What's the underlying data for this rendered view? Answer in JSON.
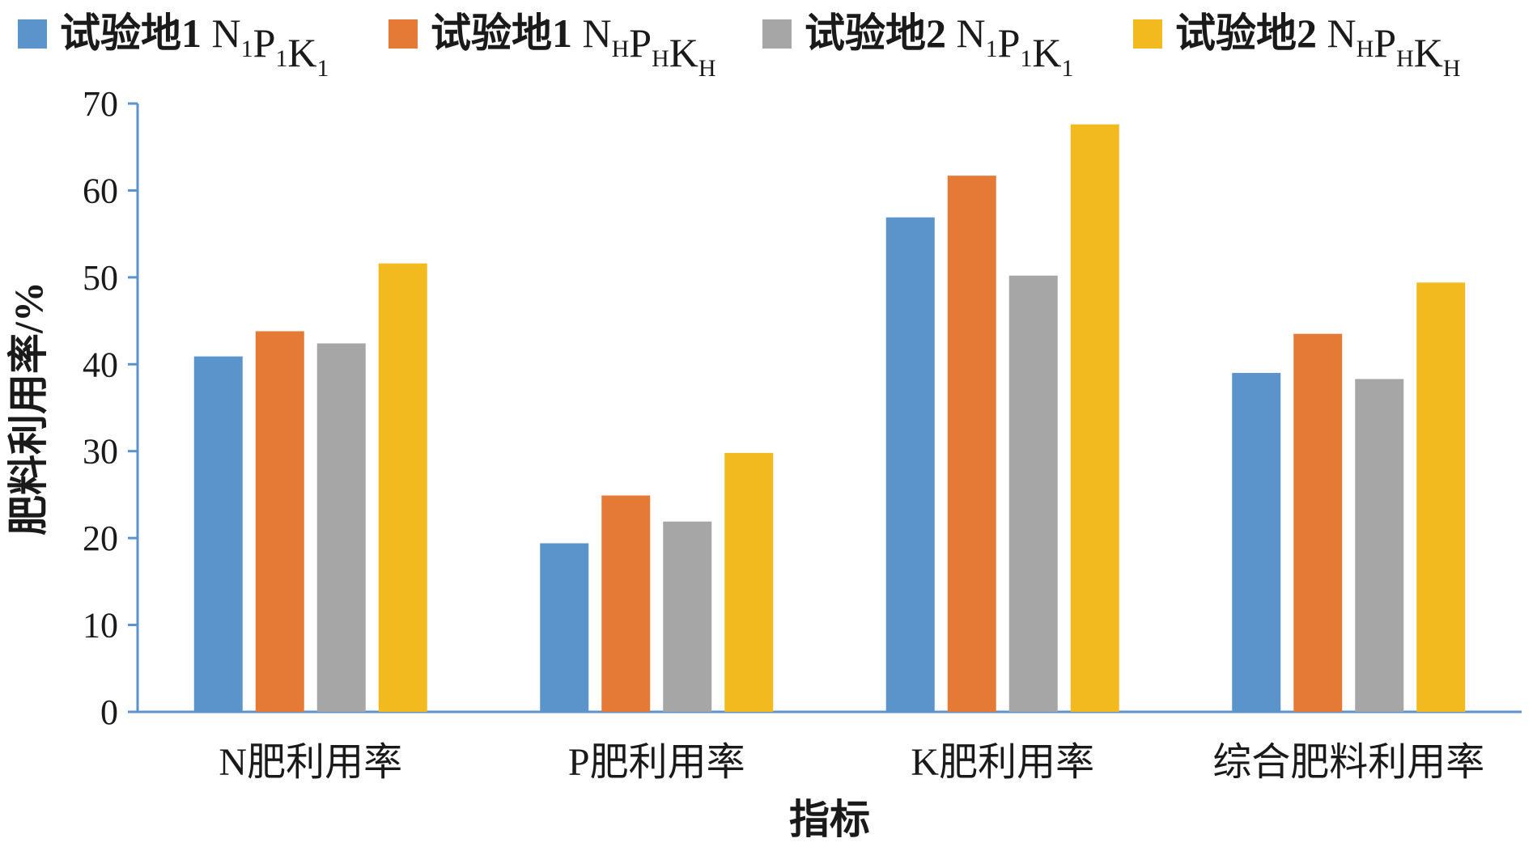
{
  "chart_data": {
    "type": "bar",
    "xlabel": "指标",
    "ylabel": "肥料利用率/%",
    "ylim": [
      0,
      70
    ],
    "yticks": [
      0,
      10,
      20,
      30,
      40,
      50,
      60,
      70
    ],
    "grid": false,
    "legend_position": "top",
    "categories": [
      "N肥利用率",
      "P肥利用率",
      "K肥利用率",
      "综合肥料利用率"
    ],
    "series": [
      {
        "name": "试验地1 N1P1K1",
        "prefix": "试验地1 ",
        "parts": [
          {
            "t": "N",
            "s": "1"
          },
          {
            "t": "P",
            "s": "1"
          },
          {
            "t": "K",
            "s": "1"
          }
        ],
        "color": "#5B93CB",
        "values": [
          40.9,
          19.4,
          56.9,
          39.0
        ]
      },
      {
        "name": "试验地1 NHPHKH",
        "prefix": "试验地1 ",
        "parts": [
          {
            "t": "N",
            "s": "H"
          },
          {
            "t": "P",
            "s": "H"
          },
          {
            "t": "K",
            "s": "H"
          }
        ],
        "color": "#E47A36",
        "values": [
          43.8,
          24.9,
          61.7,
          43.5
        ]
      },
      {
        "name": "试验地2 N1P1K1",
        "prefix": "试验地2 ",
        "parts": [
          {
            "t": "N",
            "s": "1"
          },
          {
            "t": "P",
            "s": "1"
          },
          {
            "t": "K",
            "s": "1"
          }
        ],
        "color": "#A6A6A6",
        "values": [
          42.4,
          21.9,
          50.2,
          38.3
        ]
      },
      {
        "name": "试验地2 NHPHKH",
        "prefix": "试验地2 ",
        "parts": [
          {
            "t": "N",
            "s": "H"
          },
          {
            "t": "P",
            "s": "H"
          },
          {
            "t": "K",
            "s": "H"
          }
        ],
        "color": "#F3BA1F",
        "values": [
          51.6,
          29.8,
          67.6,
          49.4
        ]
      }
    ]
  }
}
